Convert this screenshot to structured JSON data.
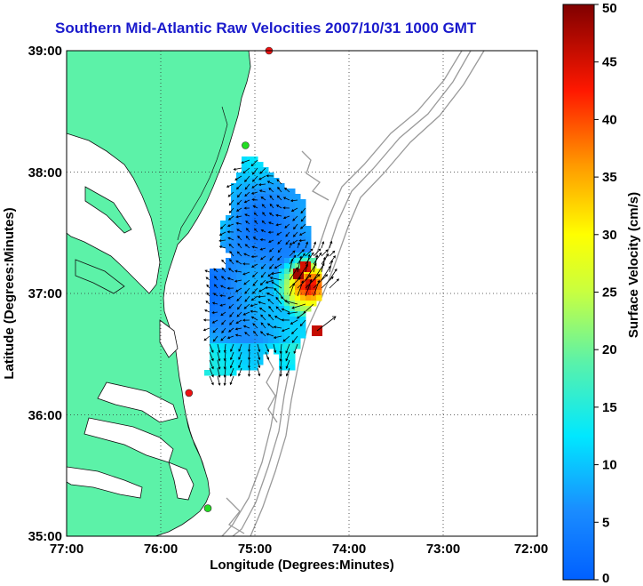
{
  "title": "Southern Mid-Atlantic Raw Velocities 2007/10/31 1000 GMT",
  "x_axis": {
    "label": "Longitude (Degrees:Minutes)",
    "ticks": [
      "77:00",
      "76:00",
      "75:00",
      "74:00",
      "73:00",
      "72:00"
    ]
  },
  "y_axis": {
    "label": "Latitude (Degrees:Minutes)",
    "ticks": [
      "39:00",
      "38:00",
      "37:00",
      "36:00",
      "35:00"
    ]
  },
  "colorbar": {
    "label": "Surface Velocity (cm/s)",
    "ticks": [
      "50",
      "45",
      "40",
      "35",
      "30",
      "25",
      "20",
      "15",
      "10",
      "5",
      "0"
    ],
    "min": 0,
    "max": 50
  },
  "colors": {
    "land": "#5cf2a8",
    "ocean": "#ffffff",
    "title": "#1a1acc",
    "bathymetry": "#9a9a9a",
    "site_active": "#22dd22",
    "site_inactive": "#ee1111"
  },
  "grid": true,
  "stations": [
    {
      "lon": -74.85,
      "lat": 39.0,
      "status": "inactive"
    },
    {
      "lon": -75.1,
      "lat": 38.22,
      "status": "active"
    },
    {
      "lon": -75.7,
      "lat": 36.18,
      "status": "inactive"
    },
    {
      "lon": -75.5,
      "lat": 35.23,
      "status": "active"
    }
  ]
}
